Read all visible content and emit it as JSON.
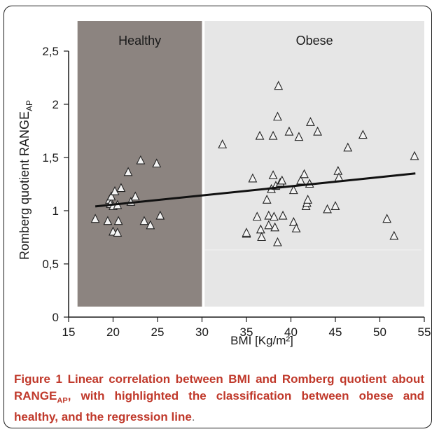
{
  "chart_data": {
    "type": "scatter",
    "xlabel": "BMI [Kg/m²]",
    "ylabel_main": "Romberg quotient RANGE",
    "ylabel_sub": "AP",
    "xlim": [
      15,
      55
    ],
    "ylim": [
      0,
      2.5
    ],
    "xticks": [
      "15",
      "20",
      "25",
      "30",
      "35",
      "40",
      "45",
      "50",
      "55"
    ],
    "yticks": [
      "0",
      "0,5",
      "1",
      "1,5",
      "2",
      "2,5"
    ],
    "regions": [
      {
        "label": "Healthy",
        "x_from": 16,
        "x_to": 30,
        "color": "#8c8480"
      },
      {
        "label": "Obese",
        "x_from": 30.3,
        "x_to": 55,
        "color": "#e6e6e6"
      }
    ],
    "regression_line": {
      "x": [
        18,
        54
      ],
      "y": [
        1.04,
        1.35
      ]
    },
    "series": [
      {
        "points": [
          [
            18,
            0.92
          ],
          [
            19.4,
            0.9
          ],
          [
            19.6,
            1.1
          ],
          [
            19.7,
            1.06
          ],
          [
            19.8,
            1.13
          ],
          [
            20,
            1.04
          ],
          [
            20,
            0.8
          ],
          [
            20.2,
            1.18
          ],
          [
            20.5,
            1.05
          ],
          [
            20.5,
            0.79
          ],
          [
            20.6,
            0.9
          ],
          [
            20.9,
            1.21
          ],
          [
            21.7,
            1.36
          ],
          [
            22,
            1.08
          ],
          [
            22.5,
            1.13
          ],
          [
            23.1,
            1.47
          ],
          [
            23.5,
            0.9
          ],
          [
            24.2,
            0.86
          ],
          [
            24.9,
            1.44
          ],
          [
            25.3,
            0.95
          ],
          [
            32.3,
            1.62
          ],
          [
            35,
            0.78
          ],
          [
            35,
            0.79
          ],
          [
            35.7,
            1.3
          ],
          [
            36.2,
            0.94
          ],
          [
            36.5,
            1.7
          ],
          [
            36.6,
            0.82
          ],
          [
            36.7,
            0.75
          ],
          [
            37.3,
            1.1
          ],
          [
            37.5,
            0.86
          ],
          [
            37.5,
            0.95
          ],
          [
            37.8,
            1.2
          ],
          [
            38,
            1.33
          ],
          [
            38,
            1.7
          ],
          [
            38.1,
            0.94
          ],
          [
            38.2,
            0.84
          ],
          [
            38.3,
            1.23
          ],
          [
            38.5,
            1.88
          ],
          [
            38.5,
            0.7
          ],
          [
            38.6,
            2.17
          ],
          [
            38.8,
            1.26
          ],
          [
            39,
            1.28
          ],
          [
            39.1,
            0.95
          ],
          [
            39.8,
            1.74
          ],
          [
            40.3,
            0.89
          ],
          [
            40.3,
            1.19
          ],
          [
            40.6,
            0.83
          ],
          [
            40.9,
            1.69
          ],
          [
            41.1,
            1.28
          ],
          [
            41.5,
            1.34
          ],
          [
            41.7,
            1.04
          ],
          [
            41.8,
            1.07
          ],
          [
            41.9,
            1.1
          ],
          [
            42.2,
            1.83
          ],
          [
            42.1,
            1.25
          ],
          [
            43,
            1.74
          ],
          [
            44.1,
            1.01
          ],
          [
            45,
            1.04
          ],
          [
            45.3,
            1.37
          ],
          [
            45.4,
            1.31
          ],
          [
            46.4,
            1.59
          ],
          [
            48.1,
            1.71
          ],
          [
            50.8,
            0.92
          ],
          [
            51.6,
            0.76
          ],
          [
            53.9,
            1.51
          ]
        ]
      }
    ]
  },
  "caption": {
    "label": "Figure 1",
    "text_a": " Linear correlation between BMI and Romberg quotient about RANGE",
    "sub": "AP",
    "text_b": ", with highlighted the classification between obese and healthy, and the regression line",
    "period": "."
  }
}
